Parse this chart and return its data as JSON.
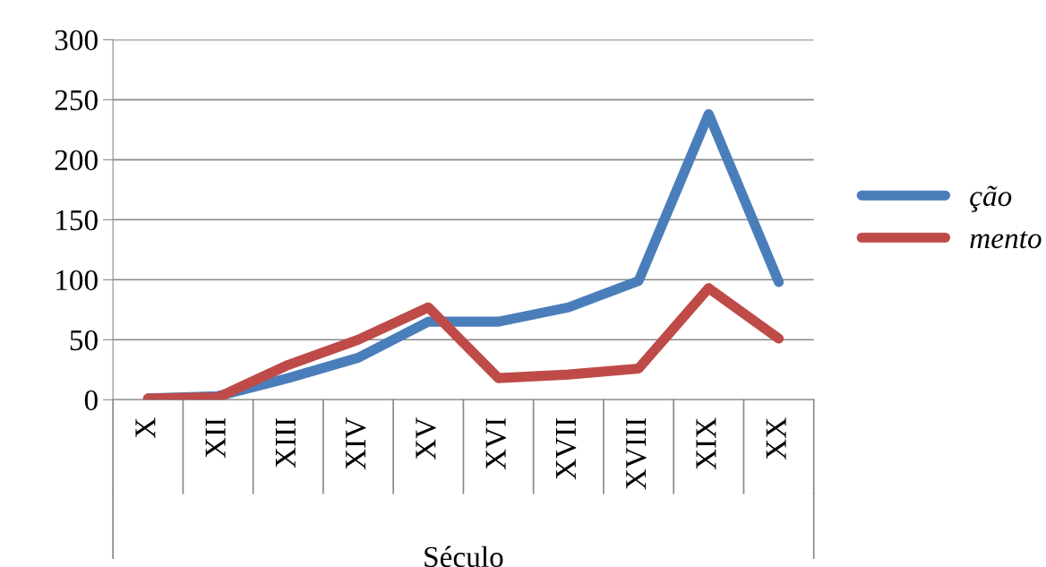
{
  "chart_data": {
    "type": "line",
    "xlabel": "Século",
    "categories": [
      "X",
      "XII",
      "XIII",
      "XIV",
      "XV",
      "XVI",
      "XVII",
      "XVIII",
      "XIX",
      "XX"
    ],
    "series": [
      {
        "name": "ção",
        "color": "#4a7ebb",
        "values": [
          1,
          3,
          18,
          35,
          65,
          65,
          77,
          99,
          238,
          98
        ]
      },
      {
        "name": "mento",
        "color": "#be4b48",
        "values": [
          1,
          2,
          29,
          50,
          77,
          18,
          21,
          26,
          93,
          51
        ]
      }
    ],
    "ylim": [
      0,
      300
    ],
    "yticks": [
      0,
      50,
      100,
      150,
      200,
      250,
      300
    ],
    "grid": "y",
    "legend": "right",
    "marker": "none",
    "line_style": "solid"
  }
}
